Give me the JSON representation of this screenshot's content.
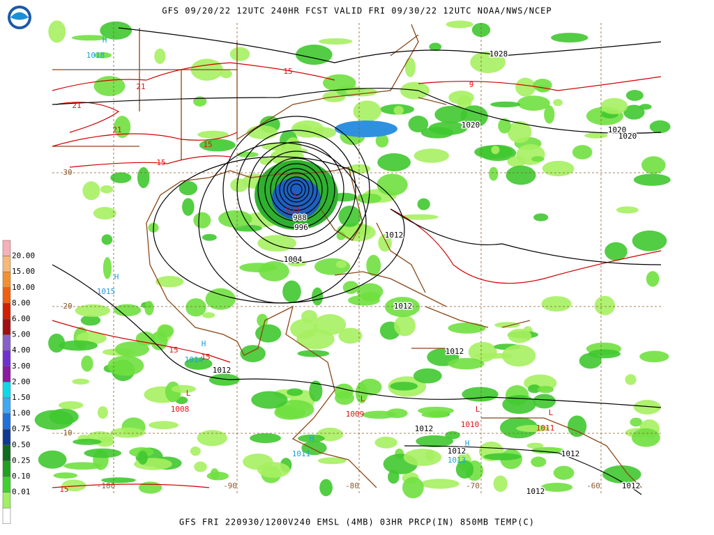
{
  "header": {
    "title": "GFS 09/20/22 12UTC 240HR FCST VALID FRI 09/30/22 12UTC NOAA/NWS/NCEP"
  },
  "footer": {
    "caption": "GFS FRI 220930/1200V240 EMSL (4MB) 03HR PRCP(IN) 850MB TEMP(C)"
  },
  "legend": {
    "labels": [
      "20.00",
      "15.00",
      "10.00",
      "8.00",
      "6.00",
      "5.00",
      "4.00",
      "3.00",
      "2.00",
      "1.50",
      "1.00",
      "0.75",
      "0.50",
      "0.25",
      "0.10",
      "0.01"
    ]
  },
  "pressure_centers": [
    {
      "symbol": "H",
      "pressure": "1018"
    },
    {
      "symbol": "H",
      "pressure": "1015"
    },
    {
      "symbol": "H",
      "pressure": "1014"
    },
    {
      "symbol": "L",
      "pressure": "1008"
    },
    {
      "symbol": "H",
      "pressure": "1011"
    },
    {
      "symbol": "L",
      "pressure": "1009"
    },
    {
      "symbol": "L",
      "pressure": "1010"
    },
    {
      "symbol": "H",
      "pressure": "1013"
    },
    {
      "symbol": "L",
      "pressure": "1011"
    },
    {
      "symbol": "L",
      "pressure": "933"
    }
  ],
  "isobar_labels": [
    "1028",
    "1020",
    "1020",
    "1020",
    "1012",
    "1012",
    "1012",
    "1012",
    "1012",
    "1012",
    "1012",
    "1012",
    "1012",
    "1004",
    "996",
    "988"
  ],
  "temperature_labels": [
    "15",
    "21",
    "21",
    "21",
    "15",
    "15",
    "9",
    "15",
    "15",
    "15"
  ],
  "latitude_labels": [
    "30",
    "20",
    "10"
  ],
  "longitude_labels": [
    "-100",
    "-90",
    "-80",
    "-70",
    "-60"
  ]
}
